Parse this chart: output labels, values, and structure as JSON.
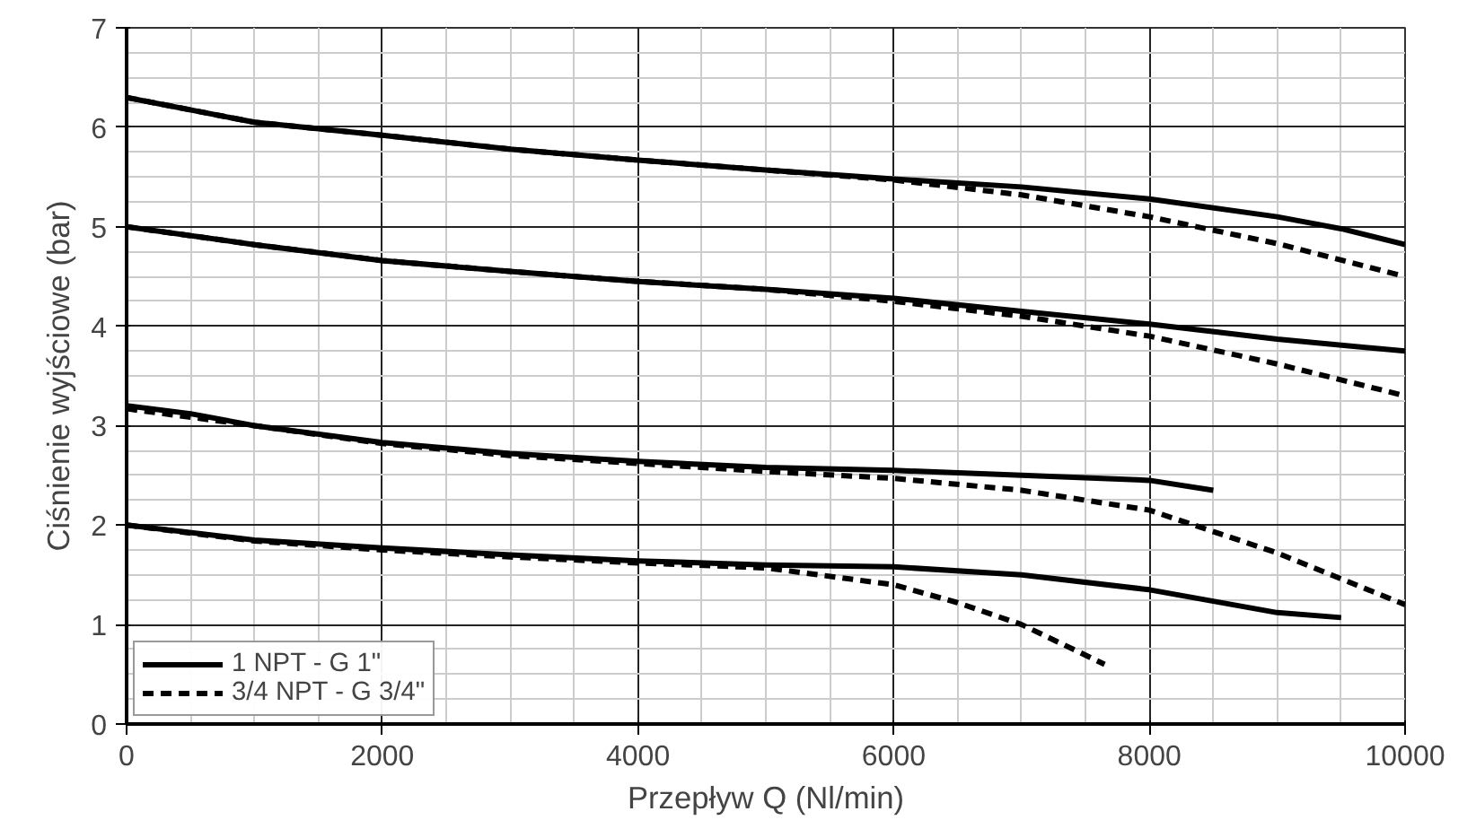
{
  "chart_data": {
    "type": "line",
    "xlabel": "Przepływ Q (Nl/min)",
    "ylabel": "Ciśnienie wyjściowe (bar)",
    "xlim": [
      0,
      10000
    ],
    "ylim": [
      0,
      7
    ],
    "xticks": [
      0,
      2000,
      4000,
      6000,
      8000,
      10000
    ],
    "yticks": [
      0,
      1,
      2,
      3,
      4,
      5,
      6,
      7
    ],
    "grid": true,
    "legend": "bottom left",
    "marker": "none",
    "series": [
      {
        "name": "1 NPT - G 1\"",
        "color": "#000000",
        "line_style": "solid",
        "x": [
          0,
          1000,
          2000,
          3000,
          4000,
          5000,
          6000,
          7000,
          8000,
          9000,
          9500,
          10000
        ],
        "values": [
          6.3,
          6.05,
          5.92,
          5.78,
          5.67,
          5.57,
          5.48,
          5.4,
          5.28,
          5.1,
          4.98,
          4.82
        ]
      },
      {
        "name": "3/4 NPT - G 3/4\"",
        "color": "#000000",
        "line_style": "dashed",
        "x": [
          0,
          1000,
          2000,
          3000,
          4000,
          5000,
          6000,
          7000,
          8000,
          9000,
          10000
        ],
        "values": [
          6.3,
          6.05,
          5.92,
          5.78,
          5.67,
          5.57,
          5.47,
          5.32,
          5.1,
          4.83,
          4.5
        ]
      },
      {
        "color": "#000000",
        "line_style": "solid",
        "x": [
          0,
          1000,
          2000,
          3000,
          4000,
          5000,
          6000,
          7000,
          8000,
          9000,
          10000
        ],
        "values": [
          5.0,
          4.82,
          4.66,
          4.55,
          4.45,
          4.37,
          4.28,
          4.15,
          4.02,
          3.87,
          3.75
        ]
      },
      {
        "color": "#000000",
        "line_style": "dashed",
        "x": [
          0,
          1000,
          2000,
          3000,
          4000,
          5000,
          6000,
          7000,
          8000,
          9000,
          10000
        ],
        "values": [
          5.0,
          4.82,
          4.66,
          4.55,
          4.45,
          4.37,
          4.25,
          4.1,
          3.9,
          3.62,
          3.3
        ]
      },
      {
        "color": "#000000",
        "line_style": "solid",
        "x": [
          0,
          500,
          1000,
          2000,
          3000,
          4000,
          5000,
          6000,
          7000,
          8000,
          8500
        ],
        "values": [
          3.2,
          3.12,
          3.0,
          2.83,
          2.72,
          2.64,
          2.58,
          2.55,
          2.5,
          2.45,
          2.35
        ]
      },
      {
        "color": "#000000",
        "line_style": "dashed",
        "x": [
          0,
          1000,
          2000,
          3000,
          4000,
          5000,
          6000,
          7000,
          8000,
          9000,
          10000
        ],
        "values": [
          3.17,
          3.0,
          2.82,
          2.7,
          2.62,
          2.54,
          2.47,
          2.35,
          2.15,
          1.72,
          1.2
        ]
      },
      {
        "color": "#000000",
        "line_style": "solid",
        "x": [
          0,
          1000,
          2000,
          3000,
          4000,
          5000,
          6000,
          7000,
          8000,
          9000,
          9500
        ],
        "values": [
          2.0,
          1.85,
          1.77,
          1.7,
          1.64,
          1.6,
          1.58,
          1.5,
          1.35,
          1.12,
          1.07
        ]
      },
      {
        "color": "#000000",
        "line_style": "dashed",
        "x": [
          0,
          1000,
          2000,
          3000,
          4000,
          5000,
          6000,
          6500,
          7000,
          7650
        ],
        "values": [
          2.0,
          1.84,
          1.75,
          1.68,
          1.62,
          1.57,
          1.4,
          1.22,
          1.0,
          0.6
        ]
      }
    ]
  }
}
